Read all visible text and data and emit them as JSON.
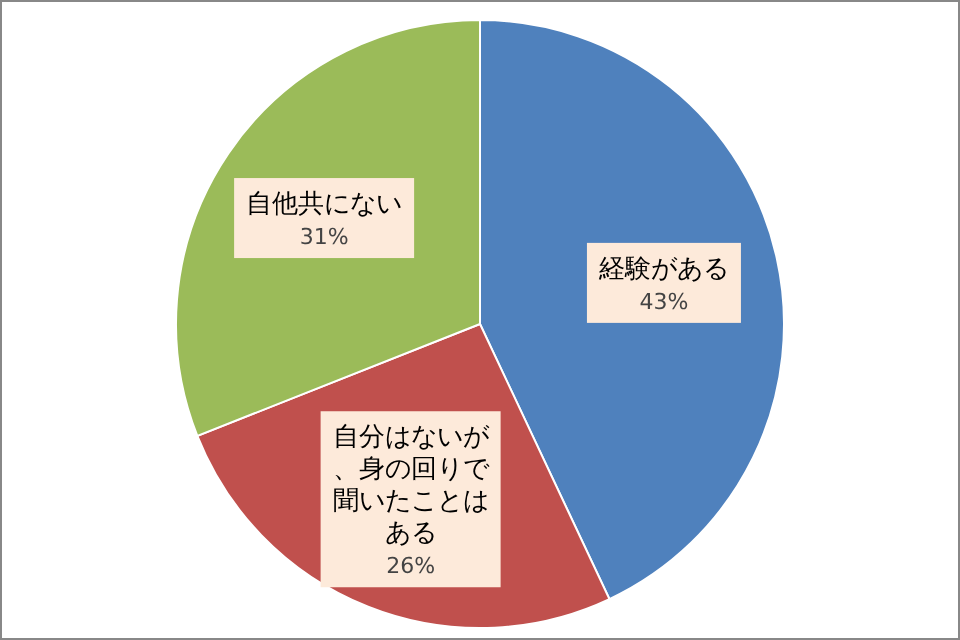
{
  "chart_data": {
    "type": "pie",
    "categories": [
      "経験がある",
      "自分はないが、身の回りで聞いたことはある",
      "自他共にない"
    ],
    "values": [
      43,
      26,
      31
    ],
    "colors": [
      "#4f81bd",
      "#c0504d",
      "#9bbb59"
    ],
    "value_labels": [
      "43%",
      "26%",
      "31%"
    ]
  }
}
